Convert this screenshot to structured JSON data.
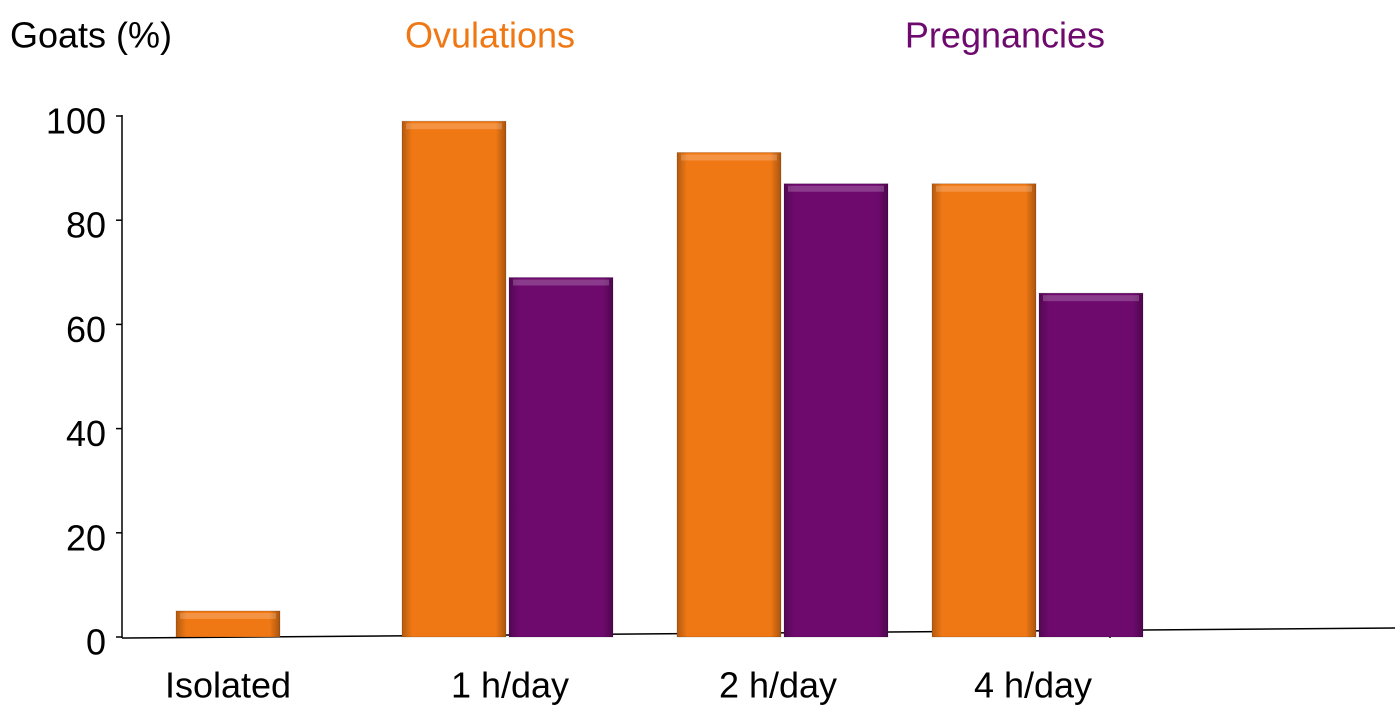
{
  "chart_data": {
    "type": "bar",
    "y_label": "Goats (%)",
    "categories": [
      "Isolated",
      "1 h/day",
      "2 h/day",
      "4 h/day"
    ],
    "series": [
      {
        "name": "Ovulations",
        "color": "#f07814",
        "values": [
          5,
          99,
          93,
          87
        ]
      },
      {
        "name": "Pregnancies",
        "color": "#6e0a6e",
        "values": [
          0,
          69,
          87,
          66
        ]
      }
    ],
    "ylim": [
      0,
      100
    ],
    "yticks": [
      0,
      20,
      40,
      60,
      80,
      100
    ],
    "grid": false
  }
}
